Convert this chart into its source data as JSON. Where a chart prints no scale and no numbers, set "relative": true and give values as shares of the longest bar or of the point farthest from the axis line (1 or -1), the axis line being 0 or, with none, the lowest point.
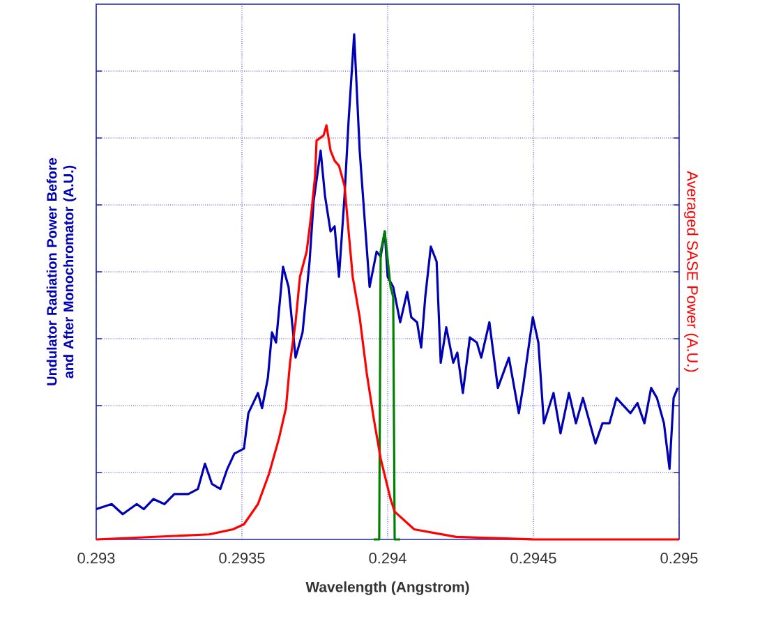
{
  "chart_data": {
    "type": "line",
    "relative": true,
    "xlabel": "Wavelength (Angstrom)",
    "ylabel": "Undulator Radiation Power Before and After Monochromator (A.U.)",
    "y2label": "Averaged SASE Power (A.U.)",
    "xlim": [
      0.293,
      0.295
    ],
    "xticks": [
      0.293,
      0.2935,
      0.294,
      0.2945,
      0.295
    ],
    "grid": true,
    "tick_labels": "x",
    "series": [
      {
        "color": "#0000b4",
        "x": [
          0.293,
          0.293053,
          0.293091,
          0.293139,
          0.293163,
          0.293196,
          0.293234,
          0.293268,
          0.293316,
          0.293349,
          0.293373,
          0.293397,
          0.293426,
          0.29345,
          0.293474,
          0.293507,
          0.293522,
          0.293555,
          0.293569,
          0.293589,
          0.293603,
          0.293617,
          0.293641,
          0.29366,
          0.293684,
          0.293708,
          0.293732,
          0.293746,
          0.29377,
          0.293785,
          0.293804,
          0.293818,
          0.293833,
          0.293852,
          0.293866,
          0.293885,
          0.293904,
          0.293924,
          0.293938,
          0.293962,
          0.293976,
          0.29399,
          0.294,
          0.294019,
          0.294043,
          0.294067,
          0.294081,
          0.294101,
          0.294115,
          0.294129,
          0.294148,
          0.294168,
          0.294182,
          0.294201,
          0.294225,
          0.294239,
          0.294258,
          0.294282,
          0.294306,
          0.294321,
          0.294349,
          0.294378,
          0.294416,
          0.29445,
          0.294464,
          0.294498,
          0.294517,
          0.294536,
          0.294569,
          0.294593,
          0.294622,
          0.294646,
          0.29467,
          0.294713,
          0.294737,
          0.294761,
          0.294785,
          0.294833,
          0.294857,
          0.294881,
          0.294904,
          0.294924,
          0.294948,
          0.294967,
          0.294981,
          0.294995
        ],
        "values": [
          0.06,
          0.07,
          0.05,
          0.07,
          0.06,
          0.08,
          0.07,
          0.09,
          0.09,
          0.1,
          0.15,
          0.11,
          0.1,
          0.14,
          0.17,
          0.18,
          0.25,
          0.29,
          0.26,
          0.32,
          0.41,
          0.39,
          0.54,
          0.5,
          0.36,
          0.41,
          0.55,
          0.67,
          0.77,
          0.68,
          0.61,
          0.62,
          0.52,
          0.68,
          0.83,
          1.0,
          0.77,
          0.61,
          0.5,
          0.57,
          0.56,
          0.61,
          0.52,
          0.5,
          0.43,
          0.49,
          0.44,
          0.43,
          0.38,
          0.48,
          0.58,
          0.55,
          0.35,
          0.42,
          0.35,
          0.37,
          0.29,
          0.4,
          0.39,
          0.36,
          0.43,
          0.3,
          0.36,
          0.25,
          0.3,
          0.44,
          0.39,
          0.23,
          0.29,
          0.21,
          0.29,
          0.23,
          0.28,
          0.19,
          0.23,
          0.23,
          0.28,
          0.25,
          0.27,
          0.23,
          0.3,
          0.28,
          0.23,
          0.14,
          0.28,
          0.3
        ]
      },
      {
        "color": "#008000",
        "x": [
          0.293952,
          0.293971,
          0.293976,
          0.29399,
          0.29401,
          0.294019,
          0.294024,
          0.294043
        ],
        "values": [
          0.0,
          0.0,
          0.57,
          0.61,
          0.5,
          0.48,
          0.0,
          0.0
        ]
      },
      {
        "color": "#ff0000",
        "axis": "y2",
        "x": [
          0.293,
          0.293388,
          0.293469,
          0.293507,
          0.293555,
          0.293593,
          0.293627,
          0.293651,
          0.293665,
          0.293684,
          0.293699,
          0.293722,
          0.293737,
          0.293751,
          0.293756,
          0.29378,
          0.29379,
          0.293804,
          0.293818,
          0.293833,
          0.293852,
          0.293866,
          0.29388,
          0.293904,
          0.293928,
          0.293952,
          0.293976,
          0.29401,
          0.294024,
          0.294091,
          0.294235,
          0.294502,
          0.295
        ],
        "values": [
          0.0,
          0.01,
          0.02,
          0.03,
          0.07,
          0.13,
          0.2,
          0.26,
          0.35,
          0.43,
          0.52,
          0.57,
          0.64,
          0.72,
          0.79,
          0.8,
          0.82,
          0.77,
          0.75,
          0.74,
          0.7,
          0.61,
          0.52,
          0.44,
          0.33,
          0.24,
          0.16,
          0.08,
          0.055,
          0.02,
          0.005,
          0.0,
          0.0
        ]
      }
    ]
  }
}
